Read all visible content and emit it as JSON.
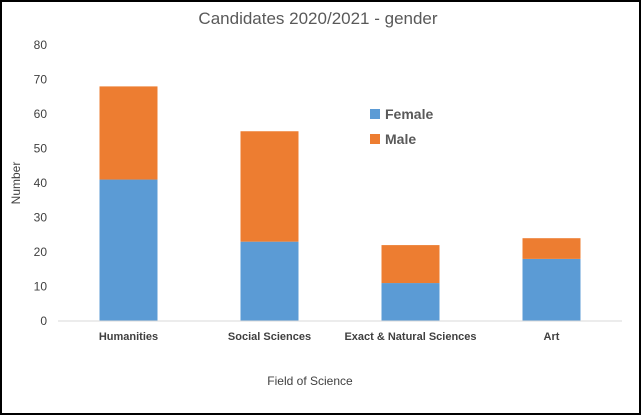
{
  "chart_data": {
    "type": "bar",
    "stacked": true,
    "title": "Candidates 2020/2021 - gender",
    "xlabel": "Field of Science",
    "ylabel": "Number",
    "categories": [
      "Humanities",
      "Social Sciences",
      "Exact & Natural Sciences",
      "Art"
    ],
    "series": [
      {
        "name": "Female",
        "values": [
          41,
          23,
          11,
          18
        ],
        "color": "#5b9bd5"
      },
      {
        "name": "Male",
        "values": [
          27,
          32,
          11,
          6
        ],
        "color": "#ed7d31"
      }
    ],
    "ylim": [
      0,
      80
    ],
    "yticks": [
      0,
      10,
      20,
      30,
      40,
      50,
      60,
      70,
      80
    ],
    "grid": false,
    "legend": "upper-center"
  }
}
